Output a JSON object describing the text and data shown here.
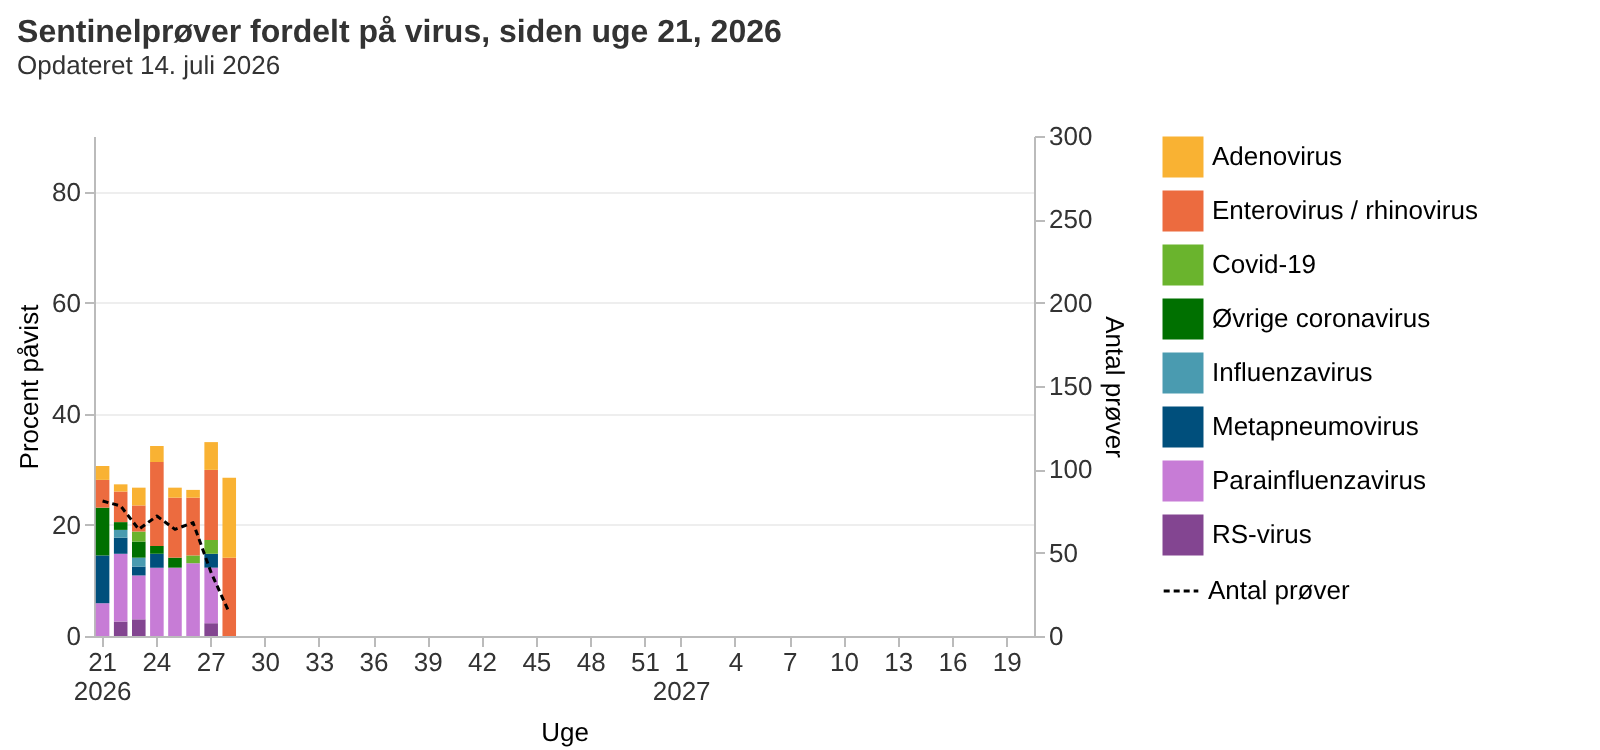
{
  "chart_data": {
    "type": "bar",
    "title": "Sentinelprøver fordelt på virus, siden uge 21, 2026",
    "subtitle": "Opdateret 14. juli 2026",
    "xlabel": "Uge",
    "ylabel": "Procent påvist",
    "y2label": "Antal prøver",
    "categories": [
      "21",
      null,
      null,
      "24",
      null,
      null,
      "27",
      null,
      null,
      "30",
      null,
      null,
      "33",
      null,
      null,
      "36",
      null,
      null,
      "39",
      null,
      null,
      "42",
      null,
      null,
      "45",
      null,
      null,
      "48",
      null,
      null,
      "51",
      null,
      "1",
      null,
      null,
      "4",
      null,
      null,
      "7",
      null,
      null,
      "10",
      null,
      null,
      "13",
      null,
      null,
      "16",
      null,
      null,
      "19",
      null
    ],
    "stacked": true,
    "series": [
      {
        "name": "RS-virus",
        "color": "#834591",
        "values": [
          null,
          2.6,
          3.0,
          null,
          null,
          null,
          2.3,
          null,
          null,
          null,
          null,
          null,
          null,
          null,
          null,
          null,
          null,
          null,
          null,
          null,
          null,
          null,
          null,
          null,
          null,
          null,
          null,
          null,
          null,
          null,
          null,
          null,
          null,
          null,
          null,
          null,
          null,
          null,
          null,
          null,
          null,
          null,
          null,
          null,
          null,
          null,
          null,
          null,
          null,
          null,
          null,
          null
        ]
      },
      {
        "name": "Parainfluenzavirus",
        "color": "#c77cd6",
        "values": [
          5.9,
          12.2,
          7.9,
          12.3,
          12.3,
          13.1,
          10.0,
          null,
          null,
          null,
          null,
          null,
          null,
          null,
          null,
          null,
          null,
          null,
          null,
          null,
          null,
          null,
          null,
          null,
          null,
          null,
          null,
          null,
          null,
          null,
          null,
          null,
          null,
          null,
          null,
          null,
          null,
          null,
          null,
          null,
          null,
          null,
          null,
          null,
          null,
          null,
          null,
          null,
          null,
          null,
          null,
          null
        ]
      },
      {
        "name": "Metapneumovirus",
        "color": "#004f7c",
        "values": [
          8.6,
          2.9,
          1.6,
          2.5,
          null,
          null,
          2.5,
          null,
          null,
          null,
          null,
          null,
          null,
          null,
          null,
          null,
          null,
          null,
          null,
          null,
          null,
          null,
          null,
          null,
          null,
          null,
          null,
          null,
          null,
          null,
          null,
          null,
          null,
          null,
          null,
          null,
          null,
          null,
          null,
          null,
          null,
          null,
          null,
          null,
          null,
          null,
          null,
          null,
          null,
          null,
          null,
          null
        ]
      },
      {
        "name": "Influenzavirus",
        "color": "#4a9bb0",
        "values": [
          null,
          1.4,
          1.6,
          null,
          null,
          null,
          null,
          null,
          null,
          null,
          null,
          null,
          null,
          null,
          null,
          null,
          null,
          null,
          null,
          null,
          null,
          null,
          null,
          null,
          null,
          null,
          null,
          null,
          null,
          null,
          null,
          null,
          null,
          null,
          null,
          null,
          null,
          null,
          null,
          null,
          null,
          null,
          null,
          null,
          null,
          null,
          null,
          null,
          null,
          null,
          null,
          null
        ]
      },
      {
        "name": "Øvrige coronavirus",
        "color": "#007000",
        "values": [
          8.6,
          1.4,
          2.9,
          1.4,
          1.8,
          null,
          null,
          null,
          null,
          null,
          null,
          null,
          null,
          null,
          null,
          null,
          null,
          null,
          null,
          null,
          null,
          null,
          null,
          null,
          null,
          null,
          null,
          null,
          null,
          null,
          null,
          null,
          null,
          null,
          null,
          null,
          null,
          null,
          null,
          null,
          null,
          null,
          null,
          null,
          null,
          null,
          null,
          null,
          null,
          null,
          null,
          null
        ]
      },
      {
        "name": "Covid-19",
        "color": "#6ab42d",
        "values": [
          null,
          null,
          1.8,
          null,
          null,
          1.4,
          2.5,
          null,
          null,
          null,
          null,
          null,
          null,
          null,
          null,
          null,
          null,
          null,
          null,
          null,
          null,
          null,
          null,
          null,
          null,
          null,
          null,
          null,
          null,
          null,
          null,
          null,
          null,
          null,
          null,
          null,
          null,
          null,
          null,
          null,
          null,
          null,
          null,
          null,
          null,
          null,
          null,
          null,
          null,
          null,
          null,
          null
        ]
      },
      {
        "name": "Enterovirus / rhinovirus",
        "color": "#ec6b3f",
        "values": [
          5.0,
          5.5,
          4.7,
          15.1,
          10.8,
          10.4,
          12.6,
          14.1,
          null,
          null,
          null,
          null,
          null,
          null,
          null,
          null,
          null,
          null,
          null,
          null,
          null,
          null,
          null,
          null,
          null,
          null,
          null,
          null,
          null,
          null,
          null,
          null,
          null,
          null,
          null,
          null,
          null,
          null,
          null,
          null,
          null,
          null,
          null,
          null,
          null,
          null,
          null,
          null,
          null,
          null,
          null,
          null
        ]
      },
      {
        "name": "Adenovirus",
        "color": "#f9b233",
        "values": [
          2.5,
          1.3,
          3.2,
          2.9,
          1.8,
          1.4,
          5.0,
          14.4,
          null,
          null,
          null,
          null,
          null,
          null,
          null,
          null,
          null,
          null,
          null,
          null,
          null,
          null,
          null,
          null,
          null,
          null,
          null,
          null,
          null,
          null,
          null,
          null,
          null,
          null,
          null,
          null,
          null,
          null,
          null,
          null,
          null,
          null,
          null,
          null,
          null,
          null,
          null,
          null,
          null,
          null,
          null,
          null
        ]
      },
      {
        "name": "Antal prøver",
        "type": "line",
        "axis": "y2",
        "color": "#000000",
        "line_style": "dashed",
        "marker": "none",
        "values": [
          81,
          78,
          64,
          72,
          64,
          68,
          38,
          14,
          null,
          null,
          null,
          null,
          null,
          null,
          null,
          null,
          null,
          null,
          null,
          null,
          null,
          null,
          null,
          null,
          null,
          null,
          null,
          null,
          null,
          null,
          null,
          null,
          null,
          null,
          null,
          null,
          null,
          null,
          null,
          null,
          null,
          null,
          null,
          null,
          null,
          null,
          null,
          null,
          null,
          null,
          null,
          null
        ]
      }
    ],
    "ylim": [
      0,
      90
    ],
    "yticks": [
      0,
      20,
      40,
      60,
      80
    ],
    "y2lim": [
      0,
      300
    ],
    "y2ticks": [
      0,
      50,
      100,
      150,
      200,
      250,
      300
    ],
    "grid": "y",
    "legend": "right",
    "annotations": [
      "2026",
      "2027"
    ]
  }
}
